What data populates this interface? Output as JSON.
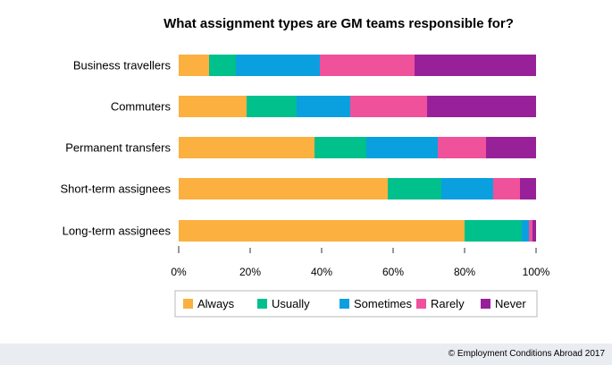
{
  "chart_data": {
    "type": "bar",
    "orientation": "horizontal",
    "stacked": true,
    "title": "What assignment types are GM teams responsible for?",
    "categories": [
      "Business travellers",
      "Commuters",
      "Permanent transfers",
      "Short-term assignees",
      "Long-term assignees"
    ],
    "series": [
      {
        "name": "Always",
        "color": "#fbb040",
        "values": [
          8.5,
          19,
          38,
          58.5,
          80
        ]
      },
      {
        "name": "Usually",
        "color": "#00c08b",
        "values": [
          7.5,
          14,
          14.5,
          15,
          16
        ]
      },
      {
        "name": "Sometimes",
        "color": "#0aa0e0",
        "values": [
          23.5,
          15,
          20,
          14.5,
          2
        ]
      },
      {
        "name": "Rarely",
        "color": "#f0519b",
        "values": [
          26.5,
          21.5,
          13.5,
          7.5,
          1
        ]
      },
      {
        "name": "Never",
        "color": "#98219a",
        "values": [
          34,
          30.5,
          14,
          4.5,
          1
        ]
      }
    ],
    "x_ticks": [
      "0%",
      "20%",
      "40%",
      "60%",
      "80%",
      "100%"
    ],
    "xlim": [
      0,
      100
    ],
    "grid": false,
    "legend_position": "bottom"
  },
  "credit": "© Employment Conditions Abroad 2017"
}
